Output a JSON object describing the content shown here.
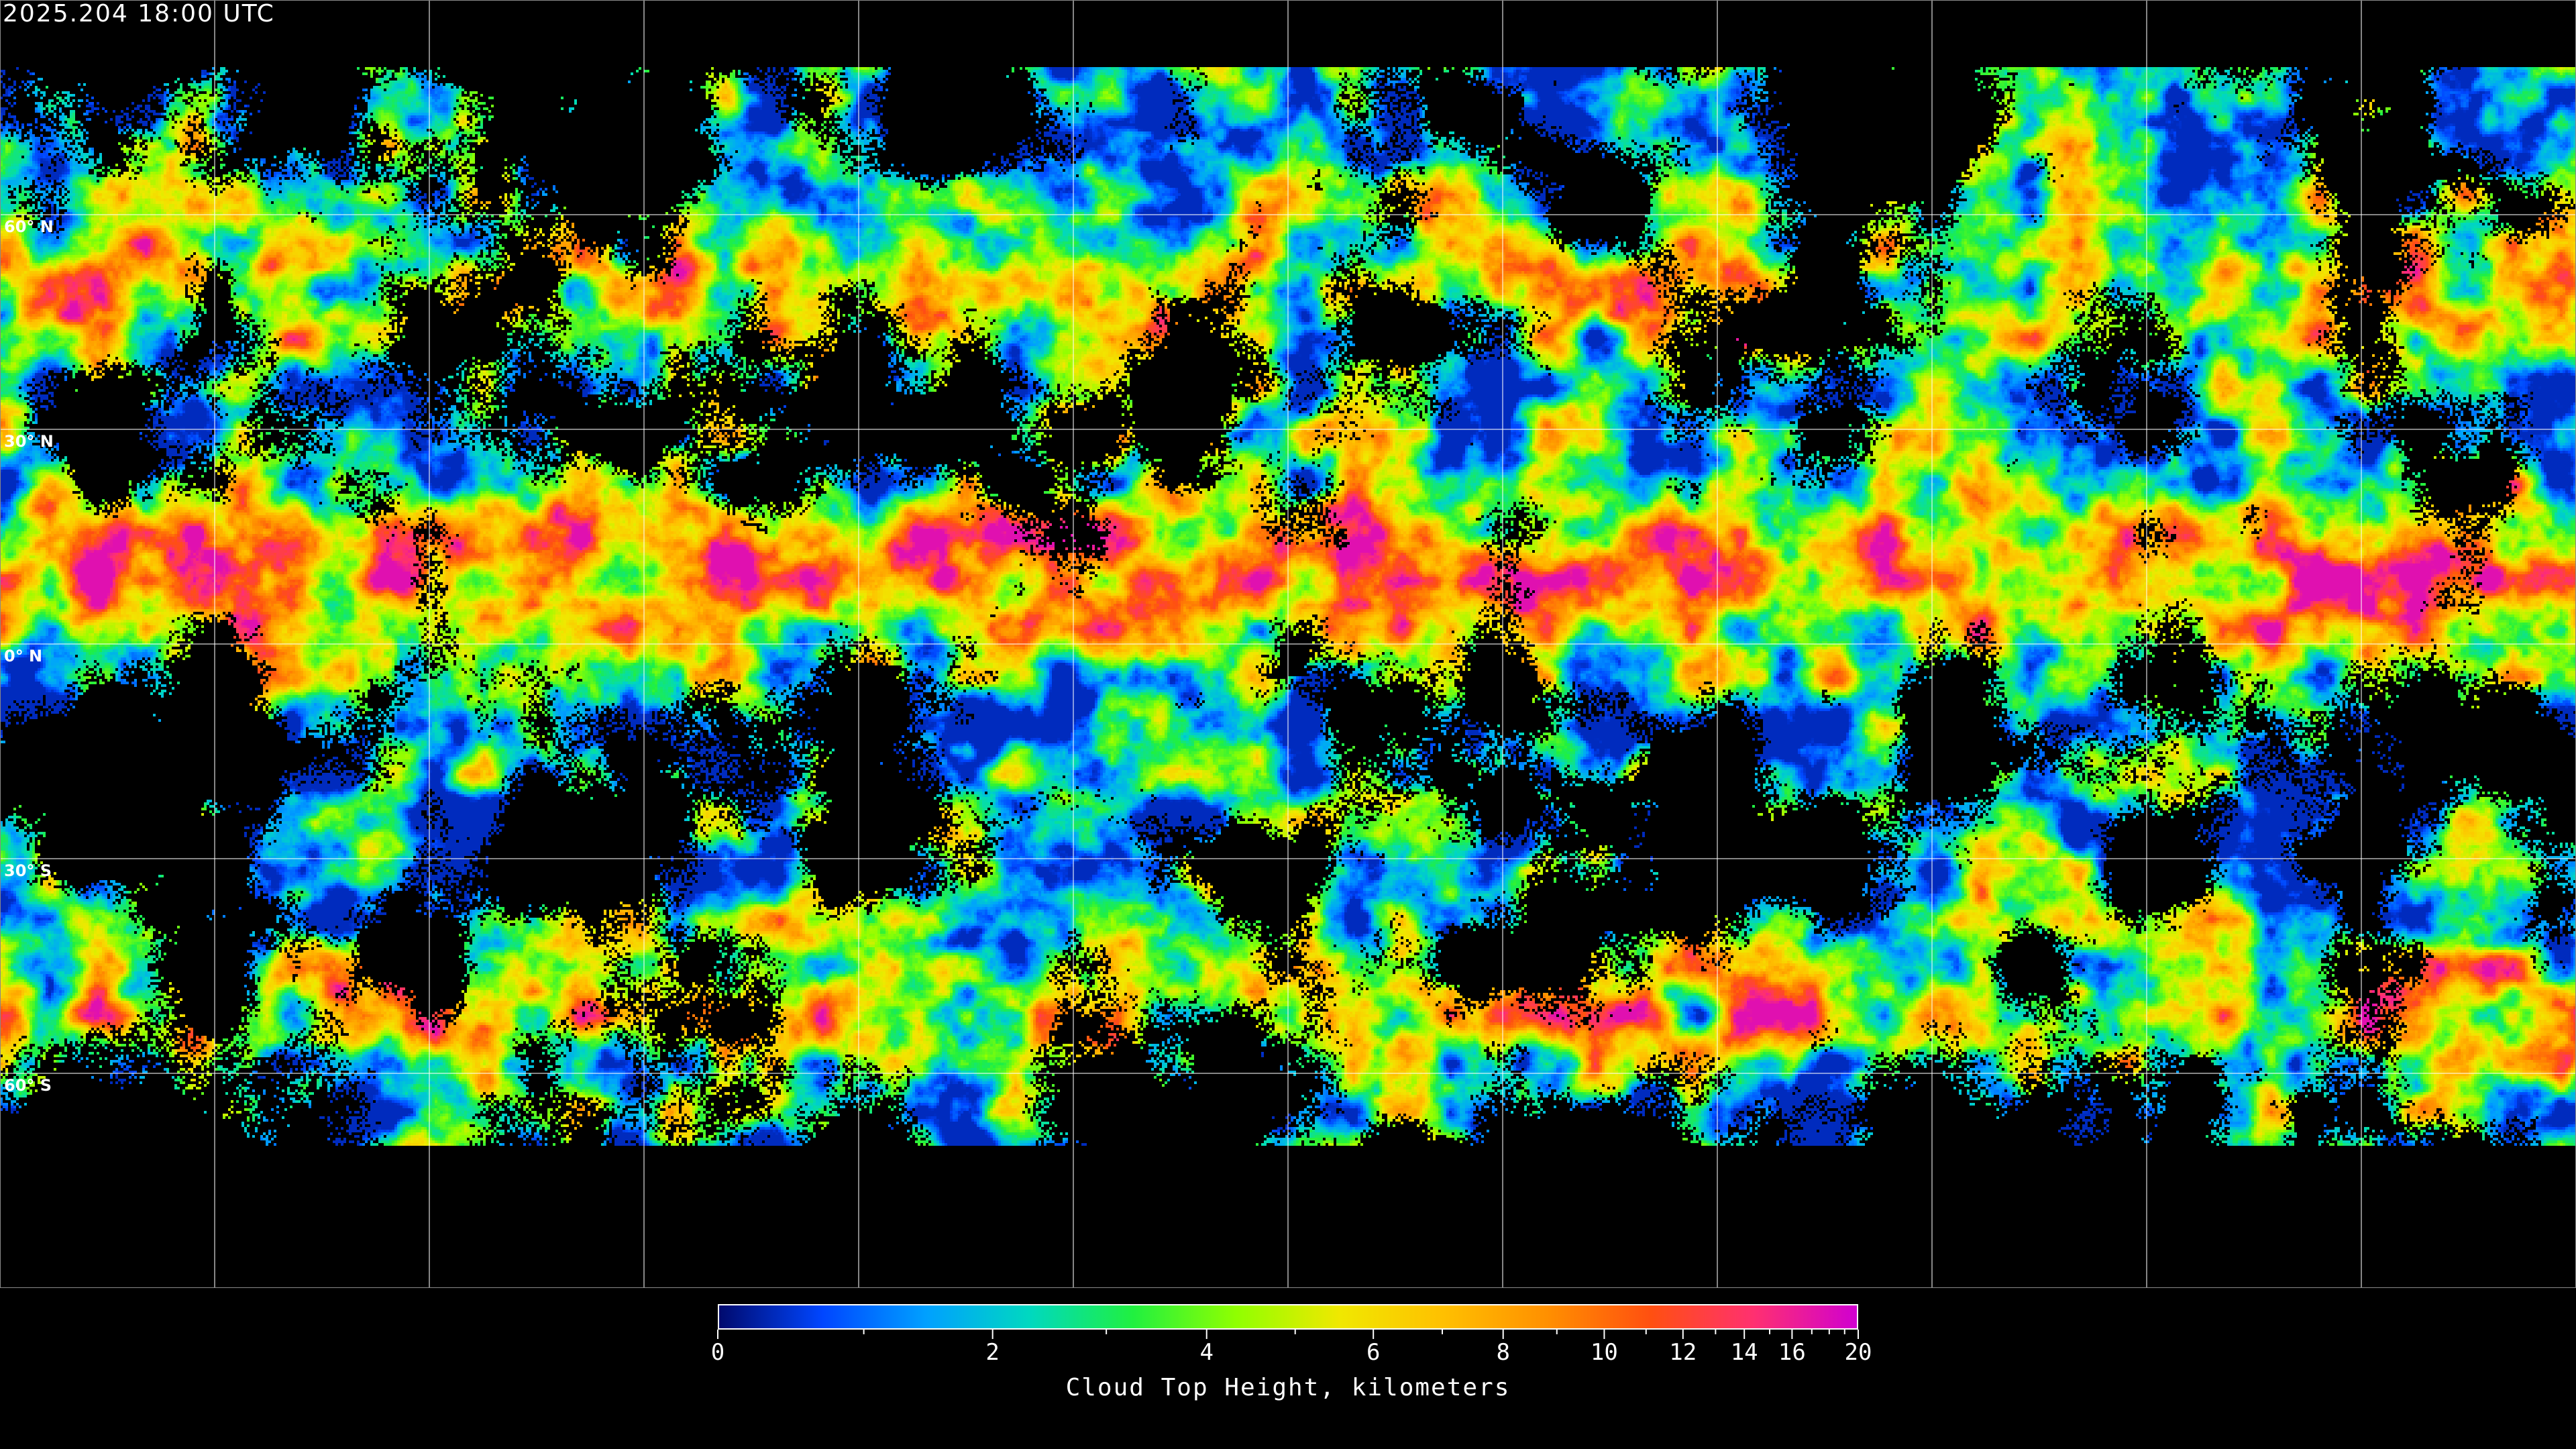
{
  "timestamp": "2025.204 18:00 UTC",
  "map": {
    "projection": "equirectangular",
    "field": "cloud top height",
    "gridline_spacing_deg": 30,
    "lat_labels": [
      {
        "lat": 60,
        "text": "60° N"
      },
      {
        "lat": 30,
        "text": "30° N"
      },
      {
        "lat": 0,
        "text": "0° N"
      },
      {
        "lat": -30,
        "text": "30° S"
      },
      {
        "lat": -60,
        "text": "60° S"
      }
    ],
    "gridline_color": "#ffffff",
    "coastline_color": "#ffffff"
  },
  "colorbar": {
    "title": "Cloud Top Height, kilometers",
    "range": [
      0,
      20
    ],
    "tick_labels": [
      "0",
      "2",
      "4",
      "6",
      "8",
      "10",
      "12",
      "14",
      "16",
      "20"
    ],
    "tick_values": [
      0,
      2,
      4,
      6,
      8,
      10,
      12,
      14,
      16,
      20
    ],
    "minor_tick_values": [
      1,
      3,
      5,
      7,
      9,
      11,
      13,
      15,
      17,
      18,
      19
    ],
    "colors": [
      "#000a6e",
      "#0046ff",
      "#00a0ff",
      "#00d8c0",
      "#20f040",
      "#90ff00",
      "#f0e800",
      "#ffc000",
      "#ff9000",
      "#ff5010",
      "#ff3070",
      "#d000d0"
    ]
  }
}
